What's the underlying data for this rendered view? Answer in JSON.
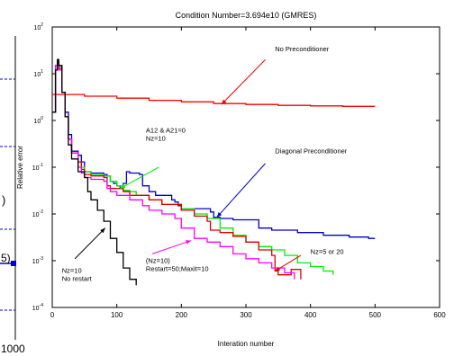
{
  "chart_data": {
    "type": "line",
    "title": "Condition Number=3.694e10 (GMRES)",
    "xlabel": "Interation number",
    "ylabel": "Relative error",
    "xlim": [
      0,
      600
    ],
    "ylim": [
      0.0001,
      100
    ],
    "yscale": "log",
    "grid": false,
    "x_ticks": [
      "0",
      "100",
      "200",
      "300",
      "400",
      "500",
      "600"
    ],
    "y_ticks": [
      {
        "base": "10",
        "exp": "-4",
        "value": 0.0001
      },
      {
        "base": "10",
        "exp": "-3",
        "value": 0.001
      },
      {
        "base": "10",
        "exp": "-2",
        "value": 0.01
      },
      {
        "base": "10",
        "exp": "-1",
        "value": 0.1
      },
      {
        "base": "10",
        "exp": "0",
        "value": 1
      },
      {
        "base": "10",
        "exp": "1",
        "value": 10
      },
      {
        "base": "10",
        "exp": "2",
        "value": 100
      }
    ],
    "series": [
      {
        "name": "No Preconditioner",
        "color": "#ff0000",
        "points": [
          [
            0,
            3.6
          ],
          [
            50,
            3.3
          ],
          [
            100,
            3.0
          ],
          [
            150,
            2.7
          ],
          [
            200,
            2.5
          ],
          [
            250,
            2.3
          ],
          [
            300,
            2.2
          ],
          [
            350,
            2.1
          ],
          [
            400,
            2.05
          ],
          [
            450,
            2.0
          ],
          [
            500,
            2.0
          ]
        ]
      },
      {
        "name": "Diagonal Preconditioner",
        "color": "#0000cc",
        "points": [
          [
            0,
            1.5
          ],
          [
            5,
            15
          ],
          [
            8,
            18
          ],
          [
            10,
            13
          ],
          [
            15,
            4
          ],
          [
            20,
            1.5
          ],
          [
            25,
            0.5
          ],
          [
            30,
            0.22
          ],
          [
            40,
            0.18
          ],
          [
            45,
            0.13
          ],
          [
            50,
            0.08
          ],
          [
            60,
            0.075
          ],
          [
            80,
            0.07
          ],
          [
            85,
            0.065
          ],
          [
            90,
            0.05
          ],
          [
            95,
            0.045
          ],
          [
            100,
            0.04
          ],
          [
            105,
            0.035
          ],
          [
            110,
            0.045
          ],
          [
            115,
            0.08
          ],
          [
            120,
            0.075
          ],
          [
            135,
            0.07
          ],
          [
            140,
            0.04
          ],
          [
            150,
            0.03
          ],
          [
            160,
            0.025
          ],
          [
            185,
            0.02
          ],
          [
            190,
            0.018
          ],
          [
            195,
            0.015
          ],
          [
            200,
            0.013
          ],
          [
            230,
            0.013
          ],
          [
            245,
            0.011
          ],
          [
            250,
            0.0085
          ],
          [
            260,
            0.008
          ],
          [
            280,
            0.0075
          ],
          [
            300,
            0.0075
          ],
          [
            320,
            0.005
          ],
          [
            340,
            0.0045
          ],
          [
            380,
            0.004
          ],
          [
            420,
            0.0035
          ],
          [
            460,
            0.0032
          ],
          [
            490,
            0.003
          ],
          [
            500,
            0.003
          ]
        ]
      },
      {
        "name": "A12 & A21=0 Nz=10",
        "color": "#00ee00",
        "points": [
          [
            0,
            1.5
          ],
          [
            5,
            15
          ],
          [
            8,
            20
          ],
          [
            10,
            14
          ],
          [
            15,
            4
          ],
          [
            20,
            1.2
          ],
          [
            25,
            0.4
          ],
          [
            30,
            0.2
          ],
          [
            40,
            0.13
          ],
          [
            45,
            0.1
          ],
          [
            50,
            0.08
          ],
          [
            60,
            0.07
          ],
          [
            80,
            0.065
          ],
          [
            90,
            0.05
          ],
          [
            100,
            0.04
          ],
          [
            110,
            0.032
          ],
          [
            120,
            0.03
          ],
          [
            130,
            0.025
          ],
          [
            140,
            0.025
          ],
          [
            150,
            0.02
          ],
          [
            170,
            0.016
          ],
          [
            200,
            0.013
          ],
          [
            220,
            0.01
          ],
          [
            240,
            0.008
          ],
          [
            260,
            0.005
          ],
          [
            280,
            0.0035
          ],
          [
            300,
            0.0025
          ],
          [
            320,
            0.002
          ],
          [
            340,
            0.0017
          ],
          [
            360,
            0.0013
          ],
          [
            380,
            0.0009
          ],
          [
            400,
            0.00075
          ],
          [
            420,
            0.0006
          ],
          [
            435,
            0.0005
          ]
        ]
      },
      {
        "name": "Nz=5 or 20",
        "color": "#dd0000",
        "points": [
          [
            0,
            1.5
          ],
          [
            5,
            15
          ],
          [
            8,
            18
          ],
          [
            10,
            13
          ],
          [
            15,
            4
          ],
          [
            20,
            1.2
          ],
          [
            25,
            0.4
          ],
          [
            30,
            0.2
          ],
          [
            40,
            0.13
          ],
          [
            45,
            0.09
          ],
          [
            50,
            0.07
          ],
          [
            60,
            0.065
          ],
          [
            80,
            0.06
          ],
          [
            85,
            0.04
          ],
          [
            90,
            0.035
          ],
          [
            110,
            0.03
          ],
          [
            120,
            0.025
          ],
          [
            150,
            0.02
          ],
          [
            170,
            0.016
          ],
          [
            200,
            0.012
          ],
          [
            220,
            0.009
          ],
          [
            240,
            0.007
          ],
          [
            245,
            0.0045
          ],
          [
            260,
            0.004
          ],
          [
            280,
            0.0033
          ],
          [
            300,
            0.0025
          ],
          [
            320,
            0.0017
          ],
          [
            340,
            0.0013
          ],
          [
            345,
            0.0006
          ],
          [
            350,
            0.0005
          ],
          [
            370,
            0.00065
          ],
          [
            385,
            0.0004
          ]
        ]
      },
      {
        "name": "(Nz=10) Restart=50;Maxit=10",
        "color": "#ff00ff",
        "points": [
          [
            0,
            1.5
          ],
          [
            5,
            15
          ],
          [
            8,
            18
          ],
          [
            10,
            12
          ],
          [
            15,
            4
          ],
          [
            20,
            1.2
          ],
          [
            25,
            0.4
          ],
          [
            30,
            0.2
          ],
          [
            40,
            0.1
          ],
          [
            45,
            0.075
          ],
          [
            50,
            0.06
          ],
          [
            60,
            0.055
          ],
          [
            80,
            0.05
          ],
          [
            85,
            0.035
          ],
          [
            90,
            0.03
          ],
          [
            100,
            0.025
          ],
          [
            120,
            0.02
          ],
          [
            140,
            0.015
          ],
          [
            150,
            0.012
          ],
          [
            170,
            0.01
          ],
          [
            190,
            0.008
          ],
          [
            200,
            0.005
          ],
          [
            220,
            0.003
          ],
          [
            240,
            0.0025
          ],
          [
            260,
            0.002
          ],
          [
            280,
            0.0014
          ],
          [
            300,
            0.0011
          ],
          [
            320,
            0.0009
          ],
          [
            340,
            0.0007
          ],
          [
            360,
            0.00055
          ],
          [
            375,
            0.0004
          ]
        ]
      },
      {
        "name": "Nz=10 No restart",
        "color": "#000000",
        "points": [
          [
            0,
            1.5
          ],
          [
            5,
            12
          ],
          [
            8,
            20
          ],
          [
            10,
            15
          ],
          [
            15,
            4
          ],
          [
            20,
            1.2
          ],
          [
            25,
            0.3
          ],
          [
            30,
            0.15
          ],
          [
            40,
            0.08
          ],
          [
            50,
            0.06
          ],
          [
            55,
            0.03
          ],
          [
            60,
            0.02
          ],
          [
            70,
            0.012
          ],
          [
            80,
            0.007
          ],
          [
            90,
            0.003
          ],
          [
            100,
            0.0015
          ],
          [
            110,
            0.0007
          ],
          [
            120,
            0.0004
          ],
          [
            130,
            0.0003
          ]
        ]
      }
    ],
    "annotations": [
      {
        "label": "No Preconditioner",
        "series": "No Preconditioner",
        "text_at": [
          345,
          30
        ],
        "arrow_from": [
          330,
          20
        ],
        "arrow_to": [
          262,
          2.2
        ]
      },
      {
        "label": "Diagonal Preconditioner",
        "series": "Diagonal Preconditioner",
        "text_at": [
          345,
          0.2
        ],
        "arrow_from": [
          330,
          0.12
        ],
        "arrow_to": [
          255,
          0.0085
        ]
      },
      {
        "lines": [
          "A12 & A21=0",
          "Nz=10"
        ],
        "series": "A12 & A21=0 Nz=10",
        "text_at": [
          145,
          0.55
        ],
        "arrow_from": [
          165,
          0.1
        ],
        "arrow_to": [
          105,
          0.035
        ]
      },
      {
        "label": "Nz=5 or 20",
        "series": "Nz=5 or 20",
        "text_at": [
          400,
          0.0014
        ],
        "arrow_from": [
          385,
          0.0013
        ],
        "arrow_to": [
          345,
          0.0006
        ]
      },
      {
        "lines": [
          "(Nz=10)",
          "Restart=50;Maxit=10"
        ],
        "series": "(Nz=10) Restart=50;Maxit=10",
        "text_at": [
          145,
          0.0009
        ],
        "arrow_from": [
          155,
          0.0014
        ],
        "arrow_to": [
          215,
          0.0027
        ]
      },
      {
        "lines": [
          "Nz=10",
          "No restart"
        ],
        "series": "Nz=10 No restart",
        "text_at": [
          15,
          0.00055
        ],
        "arrow_from": [
          35,
          0.0011
        ],
        "arrow_to": [
          82,
          0.005
        ]
      }
    ]
  },
  "left_fragment": {
    "paren_text": ")",
    "number_text": "5)",
    "bottom_tick": "1000"
  }
}
